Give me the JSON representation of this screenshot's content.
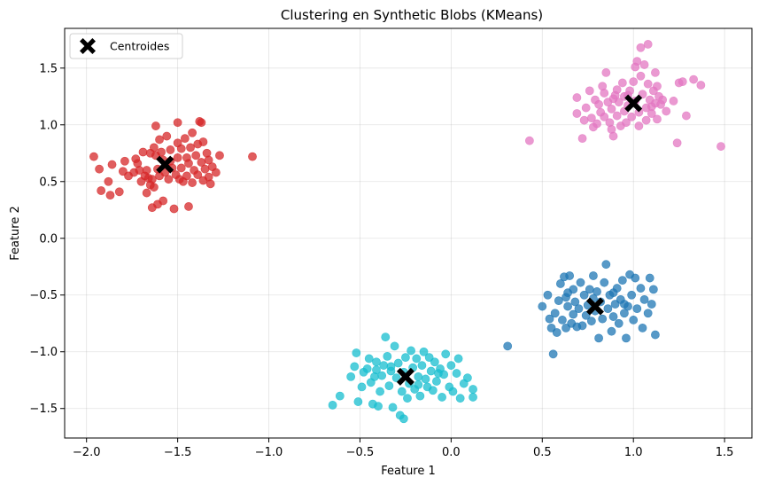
{
  "chart_data": {
    "type": "scatter",
    "title": "Clustering en Synthetic Blobs (KMeans)",
    "xlabel": "Feature 1",
    "ylabel": "Feature 2",
    "xlim": [
      -2.12,
      1.65
    ],
    "ylim": [
      -1.76,
      1.85
    ],
    "xticks": [
      -2.0,
      -1.5,
      -1.0,
      -0.5,
      0.0,
      0.5,
      1.0,
      1.5
    ],
    "xtick_labels": [
      "−2.0",
      "−1.5",
      "−1.0",
      "−0.5",
      "0.0",
      "0.5",
      "1.0",
      "1.5"
    ],
    "yticks": [
      -1.5,
      -1.0,
      -0.5,
      0.0,
      0.5,
      1.0,
      1.5
    ],
    "ytick_labels": [
      "−1.5",
      "−1.0",
      "−0.5",
      "0.0",
      "0.5",
      "1.0",
      "1.5"
    ],
    "grid": true,
    "legend_position": "top-left",
    "legend": [
      {
        "label": "Centroides",
        "marker": "X",
        "color": "#000000"
      }
    ],
    "centroids": [
      {
        "x": -1.57,
        "y": 0.65
      },
      {
        "x": 1.0,
        "y": 1.19
      },
      {
        "x": 0.79,
        "y": -0.6
      },
      {
        "x": -0.25,
        "y": -1.22
      }
    ],
    "series": [
      {
        "color": "#d62728",
        "points": [
          [
            -1.96,
            0.72
          ],
          [
            -1.93,
            0.61
          ],
          [
            -1.92,
            0.42
          ],
          [
            -1.88,
            0.5
          ],
          [
            -1.87,
            0.38
          ],
          [
            -1.86,
            0.65
          ],
          [
            -1.82,
            0.41
          ],
          [
            -1.8,
            0.59
          ],
          [
            -1.77,
            0.55
          ],
          [
            -1.74,
            0.58
          ],
          [
            -1.73,
            0.7
          ],
          [
            -1.72,
            0.66
          ],
          [
            -1.71,
            0.6
          ],
          [
            -1.7,
            0.5
          ],
          [
            -1.69,
            0.76
          ],
          [
            -1.68,
            0.55
          ],
          [
            -1.67,
            0.6
          ],
          [
            -1.67,
            0.4
          ],
          [
            -1.66,
            0.53
          ],
          [
            -1.65,
            0.75
          ],
          [
            -1.65,
            0.47
          ],
          [
            -1.64,
            0.52
          ],
          [
            -1.64,
            0.27
          ],
          [
            -1.63,
            0.8
          ],
          [
            -1.63,
            0.45
          ],
          [
            -1.62,
            0.73
          ],
          [
            -1.62,
            0.99
          ],
          [
            -1.61,
            0.61
          ],
          [
            -1.61,
            0.3
          ],
          [
            -1.6,
            0.87
          ],
          [
            -1.6,
            0.55
          ],
          [
            -1.59,
            0.76
          ],
          [
            -1.58,
            0.69
          ],
          [
            -1.58,
            0.33
          ],
          [
            -1.57,
            0.58
          ],
          [
            -1.56,
            0.9
          ],
          [
            -1.55,
            0.52
          ],
          [
            -1.54,
            0.78
          ],
          [
            -1.53,
            0.62
          ],
          [
            -1.52,
            0.26
          ],
          [
            -1.51,
            0.56
          ],
          [
            -1.5,
            0.84
          ],
          [
            -1.5,
            1.02
          ],
          [
            -1.5,
            0.71
          ],
          [
            -1.49,
            0.52
          ],
          [
            -1.48,
            0.79
          ],
          [
            -1.48,
            0.62
          ],
          [
            -1.47,
            0.5
          ],
          [
            -1.46,
            0.88
          ],
          [
            -1.45,
            0.71
          ],
          [
            -1.45,
            0.55
          ],
          [
            -1.44,
            0.66
          ],
          [
            -1.43,
            0.8
          ],
          [
            -1.42,
            0.93
          ],
          [
            -1.42,
            0.49
          ],
          [
            -1.41,
            0.6
          ],
          [
            -1.4,
            0.73
          ],
          [
            -1.39,
            0.83
          ],
          [
            -1.39,
            0.56
          ],
          [
            -1.38,
            1.03
          ],
          [
            -1.37,
            0.67
          ],
          [
            -1.37,
            1.02
          ],
          [
            -1.36,
            0.51
          ],
          [
            -1.36,
            0.85
          ],
          [
            -1.35,
            0.61
          ],
          [
            -1.34,
            0.75
          ],
          [
            -1.33,
            0.54
          ],
          [
            -1.33,
            0.69
          ],
          [
            -1.32,
            0.48
          ],
          [
            -1.31,
            0.63
          ],
          [
            -1.29,
            0.58
          ],
          [
            -1.27,
            0.73
          ],
          [
            -1.09,
            0.72
          ],
          [
            -1.79,
            0.68
          ],
          [
            -1.54,
            0.68
          ],
          [
            -1.44,
            0.28
          ]
        ]
      },
      {
        "color": "#e377c2",
        "points": [
          [
            0.43,
            0.86
          ],
          [
            0.69,
            1.24
          ],
          [
            0.69,
            1.1
          ],
          [
            0.72,
            0.88
          ],
          [
            0.73,
            1.04
          ],
          [
            0.74,
            1.15
          ],
          [
            0.76,
            1.3
          ],
          [
            0.77,
            1.06
          ],
          [
            0.78,
            0.98
          ],
          [
            0.79,
            1.22
          ],
          [
            0.8,
            1.01
          ],
          [
            0.81,
            1.18
          ],
          [
            0.82,
            1.11
          ],
          [
            0.83,
            1.34
          ],
          [
            0.84,
            1.07
          ],
          [
            0.84,
            1.28
          ],
          [
            0.85,
            1.46
          ],
          [
            0.86,
            1.2
          ],
          [
            0.87,
            1.02
          ],
          [
            0.88,
            0.96
          ],
          [
            0.88,
            1.14
          ],
          [
            0.89,
            0.9
          ],
          [
            0.9,
            1.26
          ],
          [
            0.91,
            1.31
          ],
          [
            0.91,
            1.08
          ],
          [
            0.92,
            1.2
          ],
          [
            0.93,
            0.99
          ],
          [
            0.94,
            1.37
          ],
          [
            0.95,
            1.12
          ],
          [
            0.95,
            1.25
          ],
          [
            0.96,
            1.02
          ],
          [
            0.97,
            1.17
          ],
          [
            0.98,
            1.3
          ],
          [
            0.99,
            1.07
          ],
          [
            1.0,
            1.38
          ],
          [
            1.01,
            1.21
          ],
          [
            1.01,
            1.51
          ],
          [
            1.02,
            1.56
          ],
          [
            1.03,
            1.11
          ],
          [
            1.03,
            0.99
          ],
          [
            1.04,
            1.68
          ],
          [
            1.04,
            1.43
          ],
          [
            1.05,
            1.27
          ],
          [
            1.06,
            1.53
          ],
          [
            1.07,
            1.04
          ],
          [
            1.07,
            1.15
          ],
          [
            1.08,
            1.71
          ],
          [
            1.08,
            1.36
          ],
          [
            1.09,
            1.22
          ],
          [
            1.1,
            1.1
          ],
          [
            1.11,
            1.3
          ],
          [
            1.12,
            1.46
          ],
          [
            1.12,
            1.19
          ],
          [
            1.13,
            1.05
          ],
          [
            1.13,
            1.34
          ],
          [
            1.14,
            1.25
          ],
          [
            1.15,
            1.18
          ],
          [
            1.16,
            1.22
          ],
          [
            1.18,
            1.12
          ],
          [
            1.22,
            1.21
          ],
          [
            1.24,
            0.84
          ],
          [
            1.25,
            1.37
          ],
          [
            1.27,
            1.38
          ],
          [
            1.29,
            1.08
          ],
          [
            1.33,
            1.4
          ],
          [
            1.37,
            1.35
          ],
          [
            1.48,
            0.81
          ],
          [
            0.89,
            1.23
          ],
          [
            0.97,
            1.26
          ],
          [
            1.1,
            1.16
          ]
        ]
      },
      {
        "color": "#1f77b4",
        "points": [
          [
            0.31,
            -0.95
          ],
          [
            0.5,
            -0.6
          ],
          [
            0.53,
            -0.5
          ],
          [
            0.54,
            -0.71
          ],
          [
            0.55,
            -0.79
          ],
          [
            0.56,
            -1.02
          ],
          [
            0.57,
            -0.66
          ],
          [
            0.59,
            -0.55
          ],
          [
            0.6,
            -0.4
          ],
          [
            0.61,
            -0.72
          ],
          [
            0.62,
            -0.34
          ],
          [
            0.63,
            -0.79
          ],
          [
            0.63,
            -0.52
          ],
          [
            0.64,
            -0.6
          ],
          [
            0.65,
            -0.33
          ],
          [
            0.66,
            -0.75
          ],
          [
            0.67,
            -0.45
          ],
          [
            0.67,
            -0.67
          ],
          [
            0.68,
            -0.56
          ],
          [
            0.69,
            -0.78
          ],
          [
            0.7,
            -0.62
          ],
          [
            0.71,
            -0.39
          ],
          [
            0.72,
            -0.77
          ],
          [
            0.73,
            -0.5
          ],
          [
            0.74,
            -0.68
          ],
          [
            0.75,
            -0.59
          ],
          [
            0.76,
            -0.45
          ],
          [
            0.77,
            -0.73
          ],
          [
            0.78,
            -0.33
          ],
          [
            0.78,
            -0.53
          ],
          [
            0.79,
            -0.64
          ],
          [
            0.8,
            -0.47
          ],
          [
            0.81,
            -0.88
          ],
          [
            0.82,
            -0.56
          ],
          [
            0.83,
            -0.71
          ],
          [
            0.84,
            -0.39
          ],
          [
            0.85,
            -0.23
          ],
          [
            0.86,
            -0.62
          ],
          [
            0.87,
            -0.5
          ],
          [
            0.88,
            -0.82
          ],
          [
            0.89,
            -0.69
          ],
          [
            0.9,
            -0.58
          ],
          [
            0.91,
            -0.44
          ],
          [
            0.92,
            -0.75
          ],
          [
            0.93,
            -0.54
          ],
          [
            0.94,
            -0.37
          ],
          [
            0.95,
            -0.66
          ],
          [
            0.96,
            -0.88
          ],
          [
            0.97,
            -0.6
          ],
          [
            0.98,
            -0.32
          ],
          [
            0.99,
            -0.5
          ],
          [
            1.0,
            -0.72
          ],
          [
            1.01,
            -0.35
          ],
          [
            1.02,
            -0.62
          ],
          [
            1.04,
            -0.44
          ],
          [
            1.05,
            -0.79
          ],
          [
            1.06,
            -0.54
          ],
          [
            1.08,
            -0.66
          ],
          [
            1.09,
            -0.35
          ],
          [
            1.1,
            -0.58
          ],
          [
            1.11,
            -0.45
          ],
          [
            1.12,
            -0.85
          ],
          [
            0.58,
            -0.83
          ],
          [
            0.64,
            -0.48
          ],
          [
            0.89,
            -0.48
          ],
          [
            0.95,
            -0.58
          ]
        ]
      },
      {
        "color": "#17becf",
        "points": [
          [
            -0.65,
            -1.47
          ],
          [
            -0.61,
            -1.39
          ],
          [
            -0.55,
            -1.22
          ],
          [
            -0.53,
            -1.13
          ],
          [
            -0.52,
            -1.01
          ],
          [
            -0.51,
            -1.44
          ],
          [
            -0.49,
            -1.31
          ],
          [
            -0.48,
            -1.18
          ],
          [
            -0.46,
            -1.15
          ],
          [
            -0.45,
            -1.06
          ],
          [
            -0.44,
            -1.27
          ],
          [
            -0.43,
            -1.46
          ],
          [
            -0.42,
            -1.22
          ],
          [
            -0.41,
            -1.09
          ],
          [
            -0.4,
            -1.48
          ],
          [
            -0.39,
            -1.35
          ],
          [
            -0.38,
            -1.21
          ],
          [
            -0.37,
            -1.12
          ],
          [
            -0.36,
            -0.87
          ],
          [
            -0.35,
            -1.04
          ],
          [
            -0.34,
            -1.3
          ],
          [
            -0.33,
            -1.17
          ],
          [
            -0.32,
            -1.49
          ],
          [
            -0.31,
            -0.95
          ],
          [
            -0.3,
            -1.23
          ],
          [
            -0.29,
            -1.1
          ],
          [
            -0.28,
            -1.56
          ],
          [
            -0.27,
            -1.35
          ],
          [
            -0.26,
            -1.18
          ],
          [
            -0.25,
            -1.05
          ],
          [
            -0.24,
            -1.41
          ],
          [
            -0.23,
            -1.28
          ],
          [
            -0.22,
            -0.99
          ],
          [
            -0.21,
            -1.14
          ],
          [
            -0.2,
            -1.33
          ],
          [
            -0.19,
            -1.06
          ],
          [
            -0.18,
            -1.22
          ],
          [
            -0.17,
            -1.39
          ],
          [
            -0.16,
            -1.12
          ],
          [
            -0.15,
            -1.0
          ],
          [
            -0.14,
            -1.24
          ],
          [
            -0.13,
            -1.31
          ],
          [
            -0.12,
            -1.05
          ],
          [
            -0.11,
            -1.17
          ],
          [
            -0.1,
            -1.34
          ],
          [
            -0.09,
            -1.09
          ],
          [
            -0.08,
            -1.26
          ],
          [
            -0.06,
            -1.15
          ],
          [
            -0.05,
            -1.4
          ],
          [
            -0.04,
            -1.2
          ],
          [
            -0.03,
            -1.02
          ],
          [
            -0.01,
            -1.31
          ],
          [
            0.0,
            -1.12
          ],
          [
            0.01,
            -1.35
          ],
          [
            0.03,
            -1.19
          ],
          [
            0.04,
            -1.06
          ],
          [
            0.05,
            -1.41
          ],
          [
            0.07,
            -1.28
          ],
          [
            0.09,
            -1.23
          ],
          [
            0.12,
            -1.33
          ],
          [
            0.12,
            -1.4
          ],
          [
            -0.26,
            -1.59
          ],
          [
            -0.33,
            -1.13
          ],
          [
            -0.18,
            -1.29
          ],
          [
            -0.07,
            -1.19
          ],
          [
            -0.41,
            -1.16
          ]
        ]
      }
    ]
  }
}
